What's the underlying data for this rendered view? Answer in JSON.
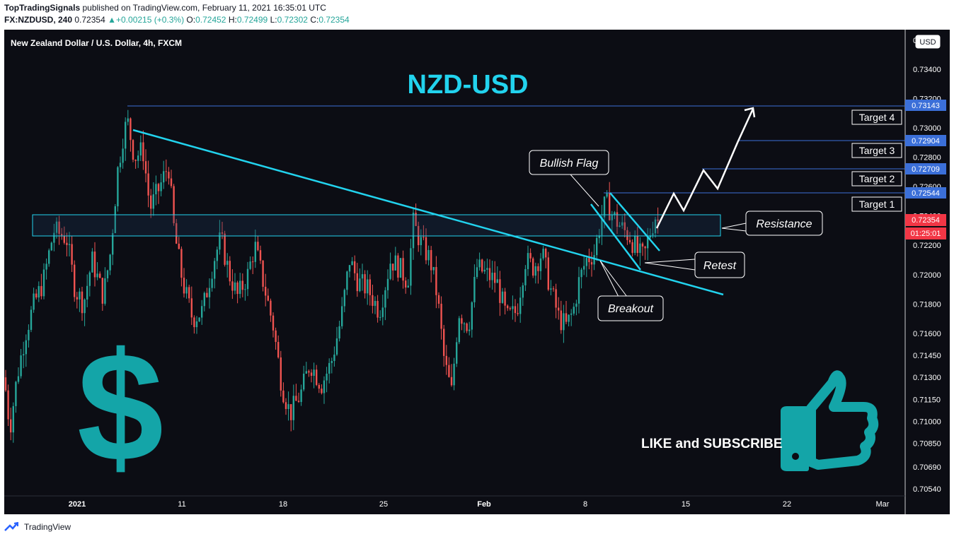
{
  "header": {
    "publisher": "TopTradingSignals",
    "published_text": "published on TradingView.com, February 11, 2021 16:35:01 UTC",
    "symbol": "FX:NZDUSD, 240",
    "last": "0.72354",
    "change": "+0.00215 (+0.3%)",
    "o_label": "O:",
    "o_val": "0.72452",
    "h_label": "H:",
    "h_val": "0.72499",
    "l_label": "L:",
    "l_val": "0.72302",
    "c_label": "C:",
    "c_val": "0.72354"
  },
  "chart": {
    "legend": "New Zealand Dollar / U.S. Dollar, 4h, FXCM",
    "big_title": "NZD-USD",
    "currency_badge": "USD",
    "dollar_glyph": "$",
    "cta": "LIKE and SUBSCRIBE",
    "countdown": "01:25:01",
    "annotations": {
      "bullish_flag": "Bullish Flag",
      "resistance": "Resistance",
      "retest": "Retest",
      "breakout": "Breakout"
    },
    "targets": [
      {
        "label": "Target 1",
        "price": "0.72544"
      },
      {
        "label": "Target 2",
        "price": "0.72709"
      },
      {
        "label": "Target 3",
        "price": "0.72904"
      },
      {
        "label": "Target 4",
        "price": "0.73143"
      }
    ],
    "colors": {
      "background": "#0c0d14",
      "up": "#26a69a",
      "down": "#ef5350",
      "cyan": "#22d3ee",
      "target_line": "#3b6fd8",
      "price_tag": "#f23645"
    }
  },
  "chart_data": {
    "type": "candlestick",
    "title": "NZD-USD",
    "subtitle": "New Zealand Dollar / U.S. Dollar, 4h, FXCM",
    "x_tick_labels": [
      "2021",
      "11",
      "18",
      "25",
      "Feb",
      "8",
      "15",
      "22",
      "Mar"
    ],
    "y_tick_labels": [
      "0.70540",
      "0.70690",
      "0.70850",
      "0.71000",
      "0.71150",
      "0.71300",
      "0.71450",
      "0.71600",
      "0.71800",
      "0.72000",
      "0.72200",
      "0.72400",
      "0.72600",
      "0.72800",
      "0.73000",
      "0.73200",
      "0.73400"
    ],
    "ylim": [
      0.7052,
      0.7357
    ],
    "price_labels": [
      "0.72354",
      "0.72544",
      "0.72709",
      "0.72904",
      "0.73143"
    ],
    "last_price": 0.72354,
    "resistance_zone": [
      0.7223,
      0.7238
    ],
    "target_levels": [
      0.72544,
      0.72709,
      0.72904,
      0.73143
    ],
    "ohlc_approx": [
      {
        "t": "Jan 05",
        "o": 0.7205,
        "h": 0.7315,
        "l": 0.719,
        "c": 0.7305
      },
      {
        "t": "Jan 21",
        "o": 0.7155,
        "h": 0.7205,
        "l": 0.71,
        "c": 0.7135
      },
      {
        "t": "Jan 27",
        "o": 0.7215,
        "h": 0.7245,
        "l": 0.7165,
        "c": 0.719
      },
      {
        "t": "Feb 01",
        "o": 0.712,
        "h": 0.715,
        "l": 0.7105,
        "c": 0.7135
      },
      {
        "t": "Feb 08",
        "o": 0.716,
        "h": 0.7215,
        "l": 0.715,
        "c": 0.7205
      },
      {
        "t": "Feb 09",
        "o": 0.7225,
        "h": 0.7255,
        "l": 0.7215,
        "c": 0.7245
      },
      {
        "t": "Feb 10",
        "o": 0.7215,
        "h": 0.7225,
        "l": 0.7205,
        "c": 0.7215
      },
      {
        "t": "Feb 11",
        "o": 0.72452,
        "h": 0.72499,
        "l": 0.72302,
        "c": 0.72354
      }
    ]
  },
  "footer": {
    "brand": "TradingView"
  }
}
